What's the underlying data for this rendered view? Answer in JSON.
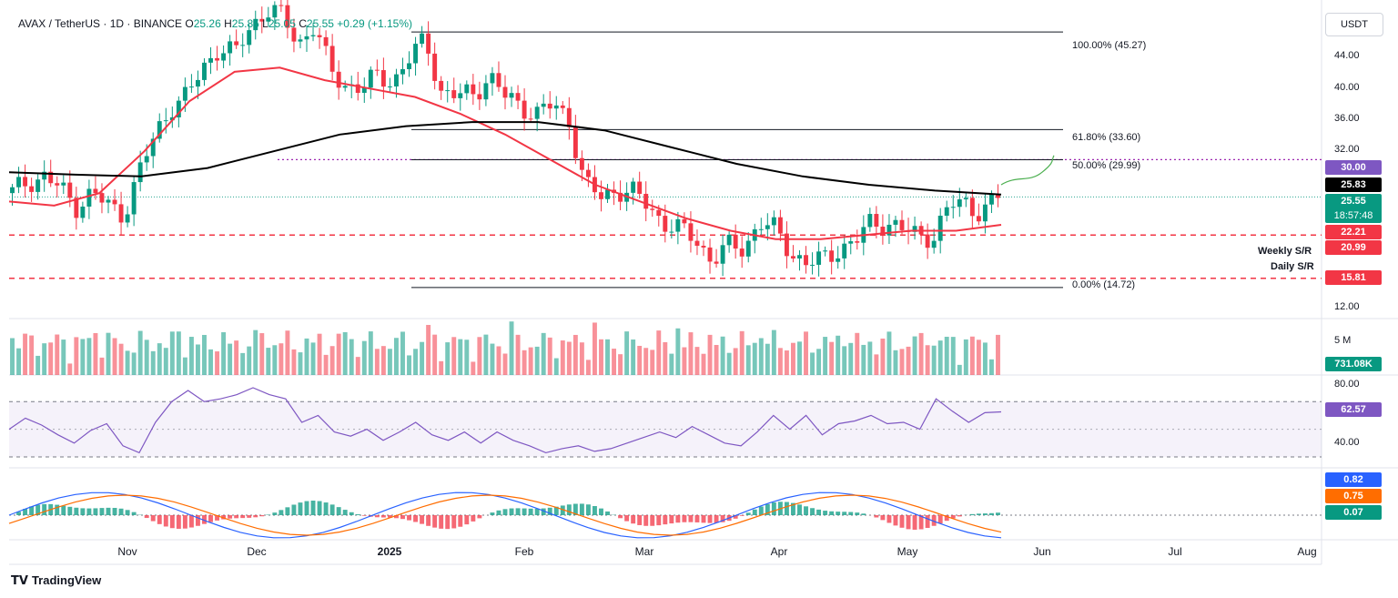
{
  "legend": {
    "symbol": "AVAX / TetherUS · 1D · BINANCE",
    "o_label": "O",
    "o_value": "25.26",
    "h_label": "H",
    "h_value": "25.85",
    "l_label": "L",
    "l_value": "25.05",
    "c_label": "C",
    "c_value": "25.55",
    "change": "+0.29 (+1.15%)"
  },
  "unit": "USDT",
  "footer": {
    "brand": "TradingView"
  },
  "colors": {
    "up": "#089981",
    "down": "#f23645",
    "ema50": "#f23645",
    "ema200": "#000000",
    "rsi": "#7e57c2",
    "macd": "#2962ff",
    "signal": "#ff6d00",
    "projection": "#4caf50"
  },
  "chart_data": [
    {
      "type": "candlestick",
      "panel": "price",
      "x_ticks": [
        "Nov",
        "Dec",
        "2025",
        "Feb",
        "Mar",
        "Apr",
        "May",
        "Jun",
        "Jul",
        "Aug"
      ],
      "y_ticks": [
        "44.00",
        "40.00",
        "36.00",
        "32.00",
        "12.00"
      ],
      "ylim": [
        11,
        48
      ],
      "close_series_approx": [
        26.0,
        27.5,
        28.0,
        26.5,
        24.5,
        26.0,
        24.5,
        23.5,
        28.5,
        33.0,
        36.5,
        37.5,
        41.0,
        43.5,
        42.5,
        46.0,
        48.0,
        47.0,
        44.0,
        46.0,
        40.5,
        39.0,
        38.5,
        40.0,
        39.5,
        42.0,
        44.5,
        38.0,
        37.5,
        38.0,
        40.0,
        37.5,
        36.5,
        35.5,
        36.5,
        35.0,
        27.0,
        25.5,
        26.5,
        26.0,
        24.5,
        22.5,
        21.5,
        20.5,
        18.0,
        19.5,
        19.5,
        22.5,
        21.5,
        19.0,
        17.5,
        18.0,
        19.5,
        20.0,
        22.5,
        22.5,
        21.5,
        21.0,
        21.0,
        24.5,
        25.0,
        23.5,
        25.55
      ],
      "ema50_approx": [
        25.0,
        24.5,
        26.0,
        31.0,
        37.0,
        40.5,
        41.0,
        39.5,
        38.5,
        37.5,
        35.5,
        33.0,
        30.0,
        27.0,
        25.0,
        23.0,
        21.5,
        20.5,
        20.5,
        21.0,
        21.5,
        21.5,
        22.21
      ],
      "ema200_value": "25.83",
      "fibonacci": [
        {
          "level": "100.00%",
          "price": "45.27"
        },
        {
          "level": "61.80%",
          "price": "33.60"
        },
        {
          "level": "50.00%",
          "price": "29.99"
        },
        {
          "level": "0.00%",
          "price": "14.72"
        }
      ],
      "horizontal_levels": [
        {
          "name": "Weekly S/R",
          "price": "20.99"
        },
        {
          "name": "Daily S/R",
          "price": "15.81"
        },
        {
          "name": "",
          "price": "30.00"
        }
      ],
      "price_tags": {
        "level_30": "30.00",
        "ema200": "25.83",
        "last": "25.55",
        "countdown": "18:57:48",
        "ema50": "22.21",
        "weekly": "20.99",
        "daily": "15.81"
      }
    },
    {
      "type": "bar",
      "panel": "volume",
      "y_ticks": [
        "5 M"
      ],
      "last_value": "731.08K"
    },
    {
      "type": "line",
      "panel": "rsi",
      "y_ticks": [
        "80.00",
        "40.00"
      ],
      "band": [
        30,
        70
      ],
      "last_value": "62.57",
      "values_approx": [
        50,
        58,
        53,
        46,
        40,
        49,
        54,
        38,
        33,
        55,
        70,
        78,
        70,
        72,
        75,
        80,
        75,
        72,
        55,
        60,
        48,
        45,
        50,
        42,
        48,
        55,
        46,
        42,
        48,
        40,
        48,
        42,
        38,
        33,
        36,
        38,
        34,
        36,
        40,
        44,
        48,
        44,
        52,
        46,
        40,
        38,
        48,
        60,
        50,
        60,
        46,
        54,
        56,
        60,
        54,
        55,
        50,
        72,
        63,
        55,
        62,
        62.57
      ]
    },
    {
      "type": "bar",
      "panel": "macd",
      "series": [
        {
          "name": "",
          "last_value": "0.82"
        },
        {
          "name": "",
          "last_value": "0.75"
        },
        {
          "name": "",
          "last_value": "0.07"
        }
      ]
    }
  ],
  "labels": {
    "weekly_sr": "Weekly S/R",
    "daily_sr": "Daily S/R",
    "fib_100": "100.00% (45.27)",
    "fib_618": "61.80% (33.60)",
    "fib_50": "50.00% (29.99)",
    "fib_0": "0.00% (14.72)",
    "vol_tick": "5 M",
    "rsi_80": "80.00",
    "rsi_40": "40.00"
  }
}
